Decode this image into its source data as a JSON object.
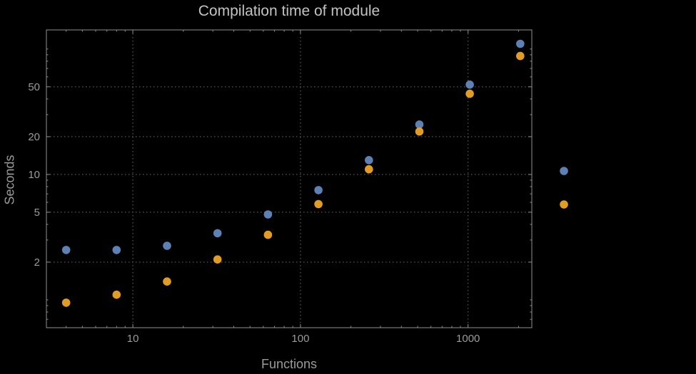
{
  "chart_data": {
    "type": "scatter",
    "title": "Compilation time of module",
    "xlabel": "Functions",
    "ylabel": "Seconds",
    "x_scale": "log",
    "y_scale": "log",
    "grid": true,
    "xlim": [
      3.05,
      2400
    ],
    "ylim": [
      0.6,
      142
    ],
    "x_ticks": [
      10,
      100,
      1000
    ],
    "y_ticks": [
      2,
      5,
      10,
      20,
      50
    ],
    "x": [
      4,
      8,
      16,
      32,
      64,
      128,
      256,
      512,
      1024,
      2048
    ],
    "series": [
      {
        "name": "blue",
        "color": "#5e81b5",
        "values": [
          2.5,
          2.5,
          2.7,
          3.4,
          4.8,
          7.5,
          13,
          25,
          52,
          110
        ]
      },
      {
        "name": "orange",
        "color": "#e19c24",
        "values": [
          0.95,
          1.1,
          1.4,
          2.1,
          3.3,
          5.8,
          11,
          22,
          44,
          88
        ]
      }
    ],
    "legend": {
      "position": "right",
      "markers": [
        {
          "series": "blue",
          "color": "#5e81b5"
        },
        {
          "series": "orange",
          "color": "#e19c24"
        }
      ]
    }
  },
  "colors": {
    "background": "#000000",
    "frame": "#8f8f8f",
    "grid": "#6c6c6c",
    "tick_text": "#9b9b9b",
    "title_text": "#c2c2c2",
    "label_text": "#9b9b9b"
  }
}
